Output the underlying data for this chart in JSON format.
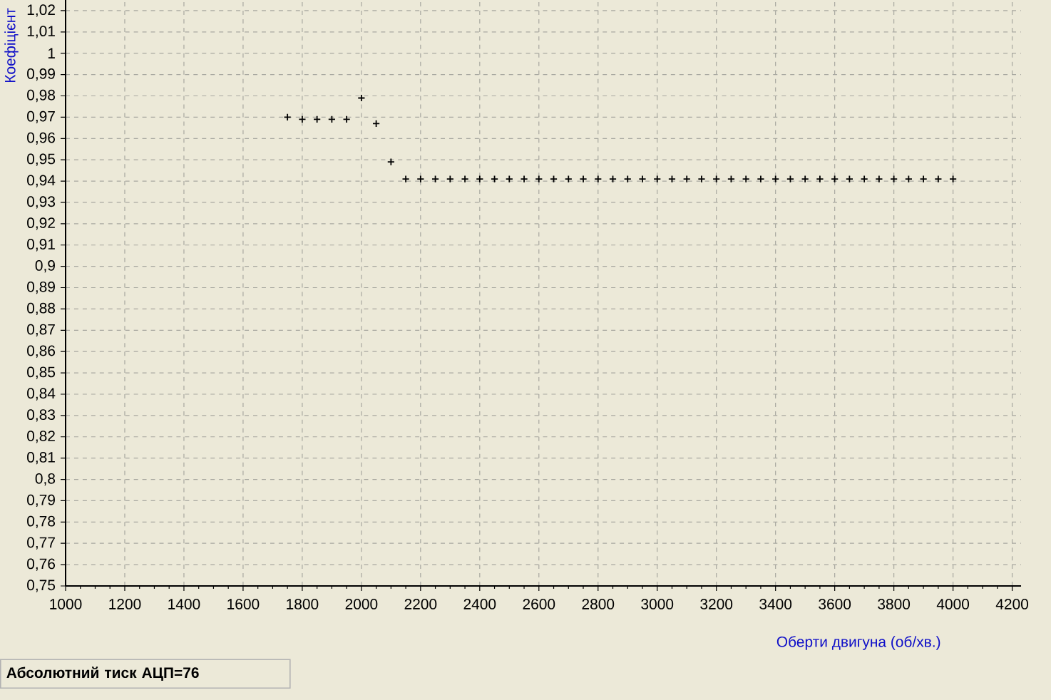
{
  "chart_data": {
    "type": "scatter",
    "xlabel": "Оберти двигуна (об/хв.)",
    "ylabel": "Коефіцієнт",
    "annotations": [
      "Абсолютний тиск АЦП=76"
    ],
    "x": [
      1750,
      1800,
      1850,
      1900,
      1950,
      2000,
      2050,
      2100,
      2150,
      2200,
      2250,
      2300,
      2350,
      2400,
      2450,
      2500,
      2550,
      2600,
      2650,
      2700,
      2750,
      2800,
      2850,
      2900,
      2950,
      3000,
      3050,
      3100,
      3150,
      3200,
      3250,
      3300,
      3350,
      3400,
      3450,
      3500,
      3550,
      3600,
      3650,
      3700,
      3750,
      3800,
      3850,
      3900,
      3950,
      4000
    ],
    "values": [
      0.97,
      0.969,
      0.969,
      0.969,
      0.969,
      0.979,
      0.967,
      0.949,
      0.941,
      0.941,
      0.941,
      0.941,
      0.941,
      0.941,
      0.941,
      0.941,
      0.941,
      0.941,
      0.941,
      0.941,
      0.941,
      0.941,
      0.941,
      0.941,
      0.941,
      0.941,
      0.941,
      0.941,
      0.941,
      0.941,
      0.941,
      0.941,
      0.941,
      0.941,
      0.941,
      0.941,
      0.941,
      0.941,
      0.941,
      0.941,
      0.941,
      0.941,
      0.941,
      0.941,
      0.941,
      0.941
    ],
    "color": "#000000",
    "marker": "cross",
    "xlim": [
      1000,
      4230
    ],
    "ylim": [
      0.75,
      1.025
    ],
    "xticks": [
      1000,
      1200,
      1400,
      1600,
      1800,
      2000,
      2200,
      2400,
      2600,
      2800,
      3000,
      3200,
      3400,
      3600,
      3800,
      4000,
      4200
    ],
    "yticks": [
      {
        "value": 0.75,
        "label": "0,75"
      },
      {
        "value": 0.76,
        "label": "0,76"
      },
      {
        "value": 0.77,
        "label": "0,77"
      },
      {
        "value": 0.78,
        "label": "0,78"
      },
      {
        "value": 0.79,
        "label": "0,79"
      },
      {
        "value": 0.8,
        "label": "0,8"
      },
      {
        "value": 0.81,
        "label": "0,81"
      },
      {
        "value": 0.82,
        "label": "0,82"
      },
      {
        "value": 0.83,
        "label": "0,83"
      },
      {
        "value": 0.84,
        "label": "0,84"
      },
      {
        "value": 0.85,
        "label": "0,85"
      },
      {
        "value": 0.86,
        "label": "0,86"
      },
      {
        "value": 0.87,
        "label": "0,87"
      },
      {
        "value": 0.88,
        "label": "0,88"
      },
      {
        "value": 0.89,
        "label": "0,89"
      },
      {
        "value": 0.9,
        "label": "0,9"
      },
      {
        "value": 0.91,
        "label": "0,91"
      },
      {
        "value": 0.92,
        "label": "0,92"
      },
      {
        "value": 0.93,
        "label": "0,93"
      },
      {
        "value": 0.94,
        "label": "0,94"
      },
      {
        "value": 0.95,
        "label": "0,95"
      },
      {
        "value": 0.96,
        "label": "0,96"
      },
      {
        "value": 0.97,
        "label": "0,97"
      },
      {
        "value": 0.98,
        "label": "0,98"
      },
      {
        "value": 0.99,
        "label": "0,99"
      },
      1,
      {
        "value": 1.01,
        "label": "1,01"
      },
      {
        "value": 1.02,
        "label": "1,02"
      }
    ],
    "grid": true
  }
}
